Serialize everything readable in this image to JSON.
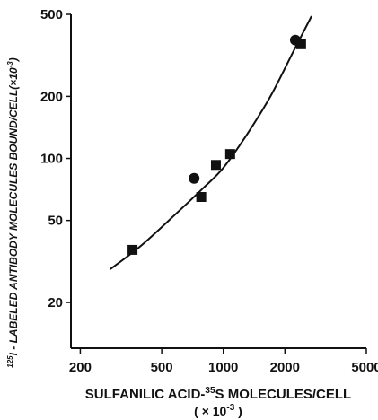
{
  "chart_data": {
    "type": "scatter",
    "x_scale": "log",
    "y_scale": "log",
    "xlim": [
      180,
      5000
    ],
    "ylim": [
      12,
      500
    ],
    "x_ticks": [
      200,
      500,
      1000,
      2000,
      5000
    ],
    "x_tick_labels": [
      "200",
      "500",
      "1000",
      "2000",
      "5000"
    ],
    "y_ticks": [
      20,
      50,
      100,
      200,
      500
    ],
    "y_tick_labels": [
      "20",
      "50",
      "100",
      "200",
      "500"
    ],
    "xlabel": "SULFANILIC ACID-",
    "xlabel_isotope": "35",
    "xlabel_rest": "S MOLECULES/CELL",
    "xlabel_units": "( × 10",
    "xlabel_units_exp": "-3",
    "xlabel_units_close": " )",
    "ylabel_isotope": "125",
    "ylabel": "I - LABELED ANTIBODY MOLECULES BOUND/CELL",
    "ylabel_units": "(×10",
    "ylabel_units_exp": "-3",
    "ylabel_units_close": ")",
    "grid": false,
    "series": [
      {
        "marker": "square",
        "points": [
          {
            "x": 360,
            "y": 36
          },
          {
            "x": 780,
            "y": 65
          },
          {
            "x": 920,
            "y": 93
          },
          {
            "x": 1080,
            "y": 105
          },
          {
            "x": 2400,
            "y": 358
          }
        ]
      },
      {
        "marker": "circle",
        "points": [
          {
            "x": 720,
            "y": 80
          },
          {
            "x": 2250,
            "y": 375
          }
        ]
      }
    ],
    "fit_curve": {
      "x": [
        280,
        400,
        600,
        800,
        1000,
        1300,
        1700,
        2200,
        2700
      ],
      "y": [
        29,
        38,
        55,
        72,
        90,
        130,
        200,
        330,
        490
      ]
    }
  }
}
